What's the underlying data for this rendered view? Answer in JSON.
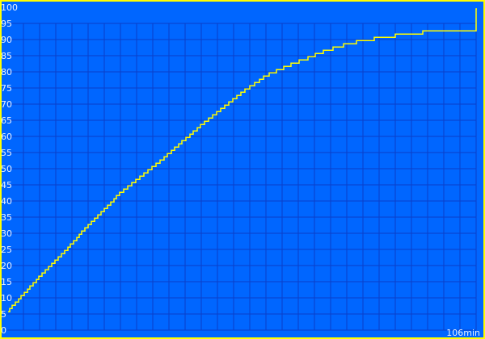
{
  "chart_data": {
    "type": "line",
    "title": "",
    "xlabel": "",
    "ylabel": "",
    "x_unit_label": "106min",
    "xlim": [
      0,
      106
    ],
    "ylim": [
      0,
      100
    ],
    "yticks": [
      0,
      5,
      10,
      15,
      20,
      25,
      30,
      35,
      40,
      45,
      50,
      55,
      60,
      65,
      70,
      75,
      80,
      85,
      90,
      95,
      100
    ],
    "grid": true,
    "colors": {
      "background": "#0066ff",
      "grid": "#0a3fc8",
      "line": "#ffff00",
      "border": "#ffff00",
      "text": "#e8f0ff"
    },
    "series": [
      {
        "x": [
          0.2,
          7.5,
          14.8,
          16.6,
          25.7,
          34.8,
          44.0,
          53.1,
          58.6,
          63.5,
          67.7,
          71.3,
          75.0,
          77.7,
          81.4,
          85.9,
          91.4,
          98.9,
          105.8,
          105.8,
          106
        ],
        "y": [
          5.75,
          16.6,
          26.8,
          29.75,
          42.5,
          52.5,
          63.5,
          73.5,
          78.75,
          81.75,
          84,
          86,
          87.7,
          88.7,
          89.7,
          90.7,
          91.7,
          92.7,
          92.7,
          99,
          99.5
        ]
      }
    ]
  }
}
